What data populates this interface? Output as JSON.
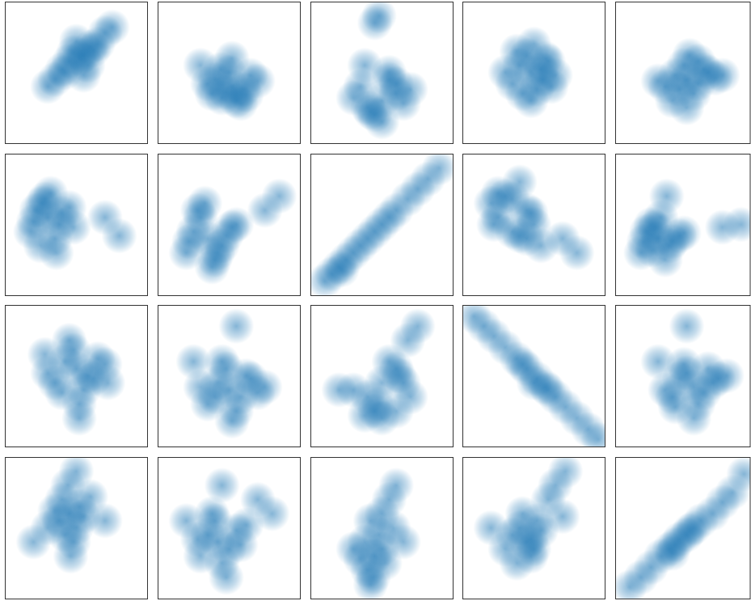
{
  "chart_data": [
    {
      "type": "scatter",
      "color": "#1f77b4",
      "xlim": [
        0,
        100
      ],
      "ylim": [
        0,
        100
      ],
      "x": [
        52,
        40,
        60,
        45,
        65,
        55,
        35,
        70,
        48,
        58,
        30,
        75,
        50,
        62,
        42,
        55
      ],
      "y": [
        60,
        52,
        68,
        58,
        70,
        62,
        45,
        78,
        64,
        55,
        40,
        82,
        72,
        66,
        50,
        48
      ]
    },
    {
      "type": "scatter",
      "color": "#1f77b4",
      "xlim": [
        0,
        100
      ],
      "ylim": [
        0,
        100
      ],
      "x": [
        52,
        40,
        60,
        45,
        65,
        50,
        35,
        58,
        48,
        70,
        30,
        55,
        44,
        62,
        52,
        38
      ],
      "y": [
        40,
        45,
        38,
        32,
        48,
        50,
        42,
        28,
        36,
        44,
        55,
        30,
        52,
        34,
        60,
        35
      ]
    },
    {
      "type": "scatter",
      "color": "#1f77b4",
      "xlim": [
        0,
        100
      ],
      "ylim": [
        0,
        100
      ],
      "x": [
        50,
        40,
        60,
        35,
        65,
        45,
        55,
        30,
        70,
        50,
        45,
        60,
        42,
        48,
        55,
        38
      ],
      "y": [
        30,
        25,
        35,
        40,
        28,
        20,
        45,
        32,
        38,
        15,
        85,
        42,
        22,
        90,
        50,
        55
      ]
    },
    {
      "type": "scatter",
      "color": "#1f77b4",
      "xlim": [
        0,
        100
      ],
      "ylim": [
        0,
        100
      ],
      "x": [
        48,
        40,
        56,
        35,
        60,
        45,
        52,
        30,
        65,
        50,
        42,
        58,
        38,
        48,
        55,
        62
      ],
      "y": [
        50,
        55,
        45,
        42,
        58,
        62,
        38,
        50,
        48,
        70,
        35,
        60,
        65,
        30,
        52,
        40
      ]
    },
    {
      "type": "scatter",
      "color": "#1f77b4",
      "xlim": [
        0,
        100
      ],
      "ylim": [
        0,
        100
      ],
      "x": [
        50,
        42,
        58,
        35,
        65,
        48,
        55,
        30,
        70,
        45,
        52,
        62,
        40,
        75,
        50,
        58
      ],
      "y": [
        45,
        48,
        42,
        40,
        50,
        55,
        35,
        44,
        46,
        38,
        62,
        52,
        30,
        48,
        25,
        58
      ]
    },
    {
      "type": "scatter",
      "color": "#1f77b4",
      "xlim": [
        0,
        100
      ],
      "ylim": [
        0,
        100
      ],
      "x": [
        30,
        22,
        38,
        18,
        45,
        28,
        35,
        25,
        40,
        32,
        20,
        48,
        70,
        80,
        36,
        26
      ],
      "y": [
        55,
        60,
        50,
        45,
        62,
        68,
        40,
        35,
        58,
        72,
        52,
        48,
        55,
        42,
        30,
        65
      ]
    },
    {
      "type": "scatter",
      "color": "#1f77b4",
      "xlim": [
        0,
        100
      ],
      "ylim": [
        0,
        100
      ],
      "x": [
        35,
        25,
        45,
        20,
        52,
        30,
        40,
        28,
        48,
        38,
        22,
        55,
        75,
        85,
        33,
        42
      ],
      "y": [
        40,
        45,
        35,
        30,
        48,
        55,
        25,
        60,
        42,
        20,
        38,
        50,
        60,
        70,
        65,
        30
      ]
    },
    {
      "type": "scatter",
      "color": "#1f77b4",
      "xlim": [
        0,
        100
      ],
      "ylim": [
        0,
        100
      ],
      "x": [
        10,
        15,
        20,
        25,
        30,
        35,
        40,
        45,
        50,
        55,
        60,
        68,
        75,
        82,
        90,
        22
      ],
      "y": [
        10,
        15,
        20,
        25,
        30,
        35,
        40,
        45,
        50,
        55,
        60,
        68,
        75,
        82,
        90,
        18
      ]
    },
    {
      "type": "scatter",
      "color": "#1f77b4",
      "xlim": [
        0,
        100
      ],
      "ylim": [
        0,
        100
      ],
      "x": [
        20,
        25,
        35,
        45,
        50,
        45,
        35,
        25,
        30,
        40,
        55,
        70,
        80,
        40,
        22,
        48
      ],
      "y": [
        65,
        55,
        45,
        40,
        50,
        60,
        68,
        72,
        70,
        42,
        35,
        40,
        30,
        80,
        50,
        58
      ]
    },
    {
      "type": "scatter",
      "color": "#1f77b4",
      "xlim": [
        0,
        100
      ],
      "ylim": [
        0,
        100
      ],
      "x": [
        30,
        22,
        38,
        18,
        45,
        28,
        35,
        25,
        40,
        32,
        20,
        48,
        75,
        88,
        36,
        26
      ],
      "y": [
        40,
        45,
        35,
        30,
        42,
        48,
        25,
        50,
        38,
        55,
        38,
        44,
        48,
        50,
        70,
        32
      ]
    },
    {
      "type": "scatter",
      "color": "#1f77b4",
      "xlim": [
        0,
        100
      ],
      "ylim": [
        0,
        100
      ],
      "x": [
        50,
        42,
        58,
        35,
        65,
        48,
        55,
        30,
        70,
        45,
        52,
        62,
        40,
        52,
        28,
        72
      ],
      "y": [
        55,
        60,
        50,
        45,
        62,
        68,
        40,
        52,
        58,
        75,
        30,
        48,
        38,
        20,
        65,
        45
      ]
    },
    {
      "type": "scatter",
      "color": "#1f77b4",
      "xlim": [
        0,
        100
      ],
      "ylim": [
        0,
        100
      ],
      "x": [
        50,
        42,
        58,
        35,
        65,
        48,
        55,
        30,
        70,
        45,
        52,
        62,
        40,
        55,
        25,
        75
      ],
      "y": [
        40,
        45,
        35,
        30,
        48,
        55,
        25,
        42,
        38,
        60,
        18,
        50,
        35,
        85,
        60,
        42
      ]
    },
    {
      "type": "scatter",
      "color": "#1f77b4",
      "xlim": [
        0,
        100
      ],
      "ylim": [
        0,
        100
      ],
      "x": [
        45,
        40,
        50,
        60,
        65,
        70,
        60,
        50,
        38,
        30,
        55,
        68,
        20,
        75,
        62,
        48
      ],
      "y": [
        25,
        35,
        45,
        55,
        45,
        35,
        25,
        20,
        22,
        40,
        60,
        75,
        40,
        85,
        50,
        30
      ]
    },
    {
      "type": "scatter",
      "color": "#1f77b4",
      "xlim": [
        0,
        100
      ],
      "ylim": [
        0,
        100
      ],
      "x": [
        8,
        15,
        22,
        30,
        38,
        45,
        52,
        58,
        65,
        72,
        80,
        88,
        95,
        50,
        42,
        60
      ],
      "y": [
        92,
        85,
        78,
        70,
        62,
        55,
        48,
        42,
        35,
        28,
        20,
        12,
        5,
        45,
        58,
        40
      ]
    },
    {
      "type": "scatter",
      "color": "#1f77b4",
      "xlim": [
        0,
        100
      ],
      "ylim": [
        0,
        100
      ],
      "x": [
        55,
        45,
        62,
        40,
        68,
        50,
        58,
        35,
        72,
        48,
        55,
        65,
        42,
        50,
        30,
        78
      ],
      "y": [
        42,
        48,
        38,
        35,
        45,
        52,
        30,
        40,
        48,
        58,
        20,
        55,
        28,
        85,
        60,
        50
      ]
    },
    {
      "type": "scatter",
      "color": "#1f77b4",
      "xlim": [
        0,
        100
      ],
      "ylim": [
        0,
        100
      ],
      "x": [
        45,
        40,
        50,
        38,
        52,
        44,
        48,
        42,
        55,
        35,
        46,
        60,
        30,
        50,
        70,
        20
      ],
      "y": [
        60,
        70,
        50,
        55,
        65,
        80,
        40,
        45,
        58,
        62,
        30,
        72,
        50,
        90,
        55,
        40
      ]
    },
    {
      "type": "scatter",
      "color": "#1f77b4",
      "xlim": [
        0,
        100
      ],
      "ylim": [
        0,
        100
      ],
      "x": [
        42,
        35,
        50,
        30,
        55,
        40,
        45,
        28,
        58,
        38,
        48,
        62,
        70,
        45,
        20,
        80
      ],
      "y": [
        40,
        45,
        35,
        30,
        48,
        55,
        25,
        42,
        38,
        60,
        15,
        52,
        70,
        80,
        55,
        60
      ]
    },
    {
      "type": "scatter",
      "color": "#1f77b4",
      "xlim": [
        0,
        100
      ],
      "ylim": [
        0,
        100
      ],
      "x": [
        45,
        40,
        50,
        38,
        52,
        44,
        48,
        35,
        42,
        55,
        60,
        58,
        30,
        50,
        65,
        42
      ],
      "y": [
        30,
        20,
        35,
        40,
        25,
        15,
        45,
        28,
        55,
        70,
        80,
        50,
        35,
        60,
        40,
        10
      ]
    },
    {
      "type": "scatter",
      "color": "#1f77b4",
      "xlim": [
        0,
        100
      ],
      "ylim": [
        0,
        100
      ],
      "x": [
        45,
        40,
        50,
        35,
        52,
        42,
        48,
        38,
        60,
        65,
        55,
        30,
        70,
        72,
        20,
        48
      ],
      "y": [
        40,
        50,
        35,
        45,
        55,
        60,
        30,
        25,
        70,
        80,
        48,
        35,
        58,
        90,
        50,
        42
      ]
    },
    {
      "type": "scatter",
      "color": "#1f77b4",
      "xlim": [
        0,
        100
      ],
      "ylim": [
        0,
        100
      ],
      "x": [
        10,
        18,
        25,
        32,
        38,
        42,
        45,
        50,
        55,
        60,
        68,
        75,
        82,
        90,
        40,
        52
      ],
      "y": [
        8,
        15,
        22,
        30,
        35,
        38,
        42,
        45,
        50,
        55,
        60,
        68,
        75,
        88,
        32,
        48
      ]
    }
  ]
}
